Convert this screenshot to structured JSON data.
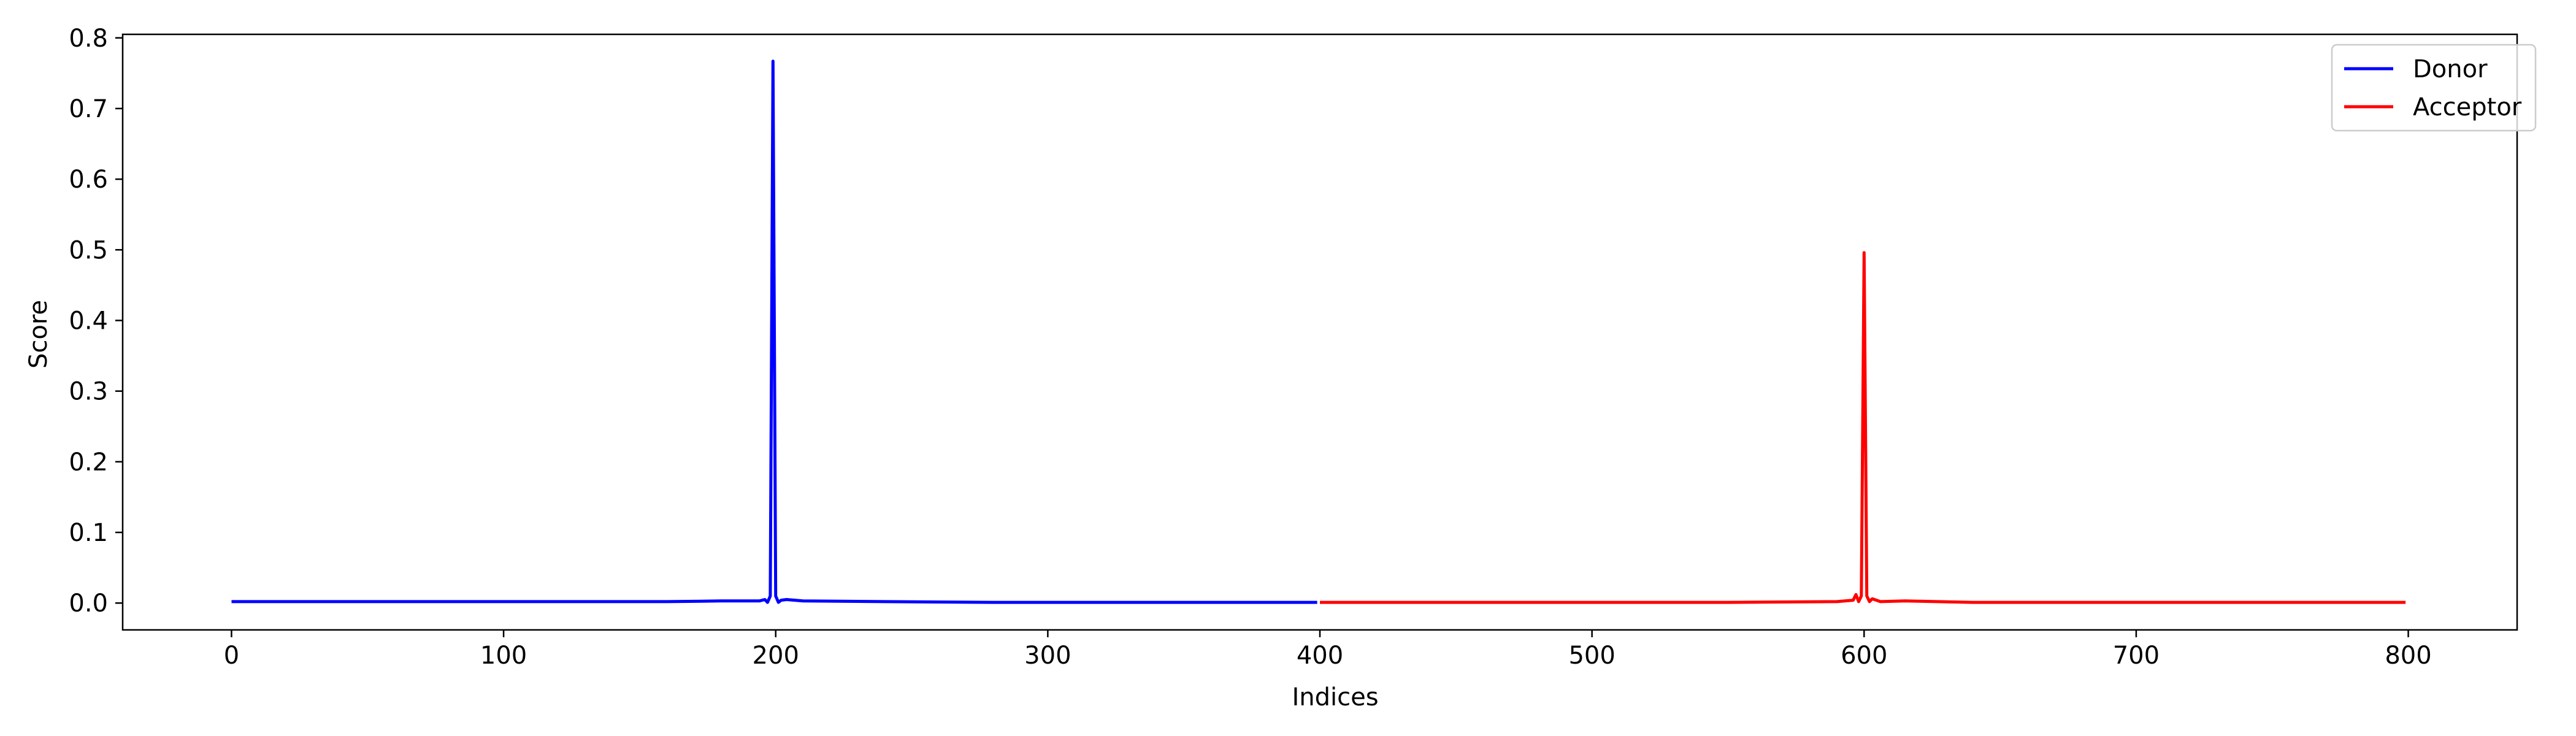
{
  "chart_data": {
    "type": "line",
    "title": "",
    "xlabel": "Indices",
    "ylabel": "Score",
    "xlim": [
      -40,
      840
    ],
    "ylim": [
      -0.038,
      0.805
    ],
    "x_ticks": [
      0,
      100,
      200,
      300,
      400,
      500,
      600,
      700,
      800
    ],
    "x_tick_labels": [
      "0",
      "100",
      "200",
      "300",
      "400",
      "500",
      "600",
      "700",
      "800"
    ],
    "y_ticks": [
      0.0,
      0.1,
      0.2,
      0.3,
      0.4,
      0.5,
      0.6,
      0.7,
      0.8
    ],
    "y_tick_labels": [
      "0.0",
      "0.1",
      "0.2",
      "0.3",
      "0.4",
      "0.5",
      "0.6",
      "0.7",
      "0.8"
    ],
    "grid": false,
    "legend_position": "top-right",
    "series": [
      {
        "name": "Donor",
        "color": "#0000ff",
        "points": [
          [
            0,
            0.002
          ],
          [
            20,
            0.002
          ],
          [
            40,
            0.002
          ],
          [
            60,
            0.002
          ],
          [
            80,
            0.002
          ],
          [
            100,
            0.002
          ],
          [
            120,
            0.002
          ],
          [
            140,
            0.002
          ],
          [
            160,
            0.002
          ],
          [
            180,
            0.003
          ],
          [
            194,
            0.003
          ],
          [
            196,
            0.005
          ],
          [
            197,
            0.001
          ],
          [
            198,
            0.01
          ],
          [
            199,
            0.767
          ],
          [
            200,
            0.01
          ],
          [
            201,
            0.001
          ],
          [
            202,
            0.004
          ],
          [
            204,
            0.005
          ],
          [
            210,
            0.003
          ],
          [
            240,
            0.002
          ],
          [
            280,
            0.001
          ],
          [
            320,
            0.001
          ],
          [
            360,
            0.001
          ],
          [
            399,
            0.001
          ]
        ]
      },
      {
        "name": "Acceptor",
        "color": "#ff0000",
        "points": [
          [
            400,
            0.001
          ],
          [
            450,
            0.001
          ],
          [
            500,
            0.001
          ],
          [
            550,
            0.001
          ],
          [
            590,
            0.002
          ],
          [
            596,
            0.004
          ],
          [
            597,
            0.012
          ],
          [
            598,
            0.002
          ],
          [
            599,
            0.01
          ],
          [
            600,
            0.496
          ],
          [
            601,
            0.01
          ],
          [
            602,
            0.002
          ],
          [
            603,
            0.006
          ],
          [
            606,
            0.002
          ],
          [
            615,
            0.003
          ],
          [
            640,
            0.001
          ],
          [
            700,
            0.001
          ],
          [
            750,
            0.001
          ],
          [
            799,
            0.001
          ]
        ]
      }
    ]
  }
}
